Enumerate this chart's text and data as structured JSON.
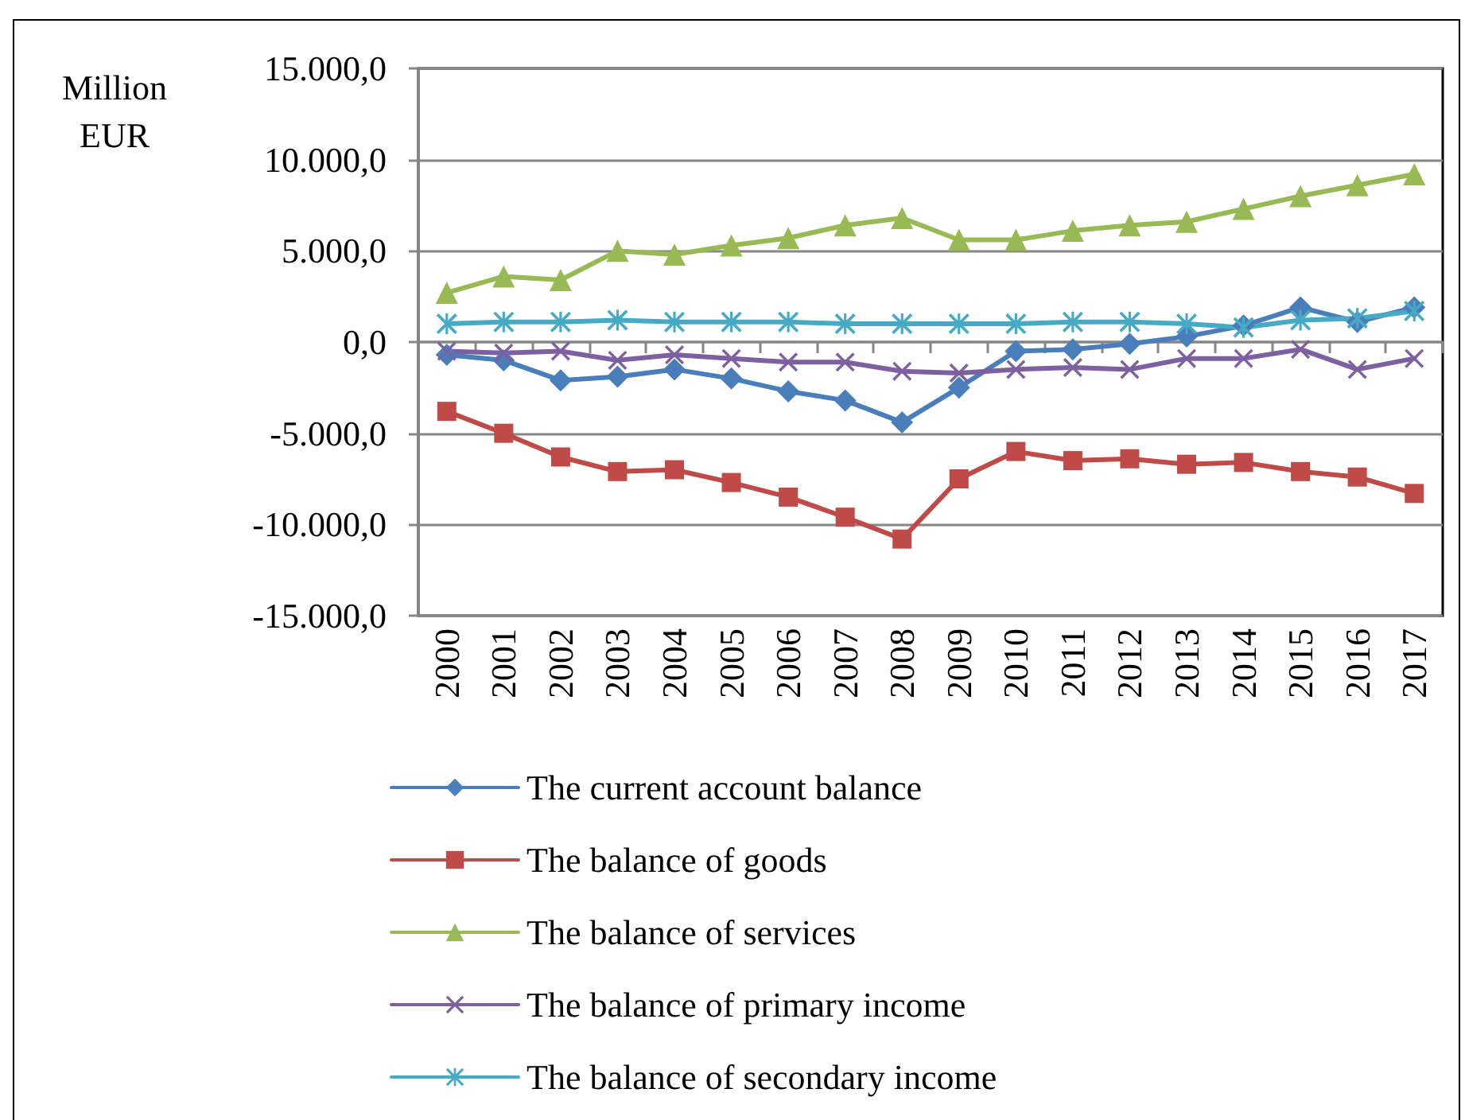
{
  "chart_data": {
    "type": "line",
    "ylabel": "Million EUR",
    "categories": [
      "2000",
      "2001",
      "2002",
      "2003",
      "2004",
      "2005",
      "2006",
      "2007",
      "2008",
      "2009",
      "2010",
      "2011",
      "2012",
      "2013",
      "2014",
      "2015",
      "2016",
      "2017"
    ],
    "series": [
      {
        "name": "The current account balance",
        "color": "#4a7ebb",
        "marker": "diamond",
        "values": [
          -700,
          -1000,
          -2100,
          -1900,
          -1500,
          -2000,
          -2700,
          -3200,
          -4400,
          -2500,
          -500,
          -400,
          -100,
          300,
          900,
          1900,
          1100,
          1900
        ]
      },
      {
        "name": "The balance of goods",
        "color": "#be4b48",
        "marker": "square",
        "values": [
          -3800,
          -5000,
          -6300,
          -7100,
          -7000,
          -7700,
          -8500,
          -9600,
          -10800,
          -7500,
          -6000,
          -6500,
          -6400,
          -6700,
          -6600,
          -7100,
          -7400,
          -8300
        ]
      },
      {
        "name": "The balance of services",
        "color": "#98b954",
        "marker": "triangle",
        "values": [
          2700,
          3600,
          3400,
          5000,
          4800,
          5300,
          5700,
          6400,
          6800,
          5600,
          5600,
          6100,
          6400,
          6600,
          7300,
          8000,
          8600,
          9200
        ]
      },
      {
        "name": "The balance of primary income",
        "color": "#7d60a0",
        "marker": "cross",
        "values": [
          -500,
          -600,
          -500,
          -1000,
          -700,
          -900,
          -1100,
          -1100,
          -1600,
          -1700,
          -1500,
          -1400,
          -1500,
          -900,
          -900,
          -400,
          -1500,
          -900
        ]
      },
      {
        "name": "The balance of secondary income",
        "color": "#46aac5",
        "marker": "star",
        "values": [
          1000,
          1100,
          1100,
          1200,
          1100,
          1100,
          1100,
          1000,
          1000,
          1000,
          1000,
          1100,
          1100,
          1000,
          800,
          1200,
          1300,
          1700
        ]
      }
    ],
    "ylim": [
      -15000,
      15000
    ],
    "yticks": [
      {
        "value": -15000,
        "label": "-15.000,0"
      },
      {
        "value": -10000,
        "label": "-10.000,0"
      },
      {
        "value": -5000,
        "label": "-5.000,0"
      },
      {
        "value": 0,
        "label": "0,0"
      },
      {
        "value": 5000,
        "label": "5.000,0"
      },
      {
        "value": 10000,
        "label": "10.000,0"
      },
      {
        "value": 15000,
        "label": "15.000,0"
      }
    ],
    "grid": "y",
    "legend": "bottom",
    "line_style": "solid"
  }
}
